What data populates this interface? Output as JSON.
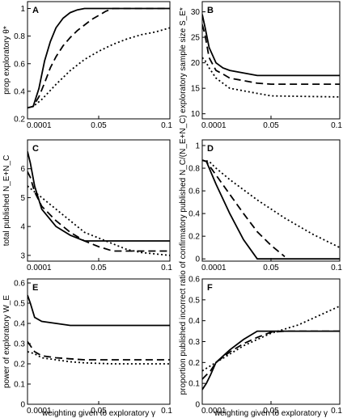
{
  "figure": {
    "xlabel": "weighting given to exploratory γ"
  },
  "chart_data": [
    {
      "type": "line",
      "panel": "A",
      "ylabel": "prop exploratory θ*",
      "xlim": [
        0,
        0.1
      ],
      "ylim": [
        0.2,
        1.05
      ],
      "xticks": [
        "0.0001",
        "0.05",
        "0.1"
      ],
      "yticks": [
        "0.2",
        "0.4",
        "0.6",
        "0.8",
        "1"
      ],
      "series": [
        {
          "style": "solid",
          "x": [
            0,
            0.004,
            0.008,
            0.012,
            0.016,
            0.02,
            0.025,
            0.03,
            0.035,
            0.04,
            0.1
          ],
          "y": [
            0.28,
            0.29,
            0.42,
            0.62,
            0.76,
            0.86,
            0.93,
            0.97,
            0.99,
            1,
            1
          ]
        },
        {
          "style": "dashed",
          "x": [
            0,
            0.004,
            0.008,
            0.012,
            0.016,
            0.02,
            0.025,
            0.03,
            0.035,
            0.04,
            0.045,
            0.05,
            0.055,
            0.06,
            0.1
          ],
          "y": [
            0.28,
            0.29,
            0.36,
            0.46,
            0.57,
            0.65,
            0.73,
            0.79,
            0.84,
            0.88,
            0.92,
            0.95,
            0.98,
            1,
            1
          ]
        },
        {
          "style": "dotted",
          "x": [
            0,
            0.004,
            0.01,
            0.02,
            0.03,
            0.04,
            0.05,
            0.06,
            0.07,
            0.08,
            0.09,
            0.1
          ],
          "y": [
            0.28,
            0.29,
            0.34,
            0.45,
            0.55,
            0.63,
            0.69,
            0.74,
            0.78,
            0.81,
            0.83,
            0.86
          ]
        }
      ]
    },
    {
      "type": "line",
      "panel": "B",
      "ylabel": "exploratory sample size S_E*",
      "xlim": [
        0,
        0.1
      ],
      "ylim": [
        9,
        32
      ],
      "xticks": [
        "0.0001",
        "0.05",
        "0.1"
      ],
      "yticks": [
        "10",
        "15",
        "20",
        "25",
        "30"
      ],
      "series": [
        {
          "style": "solid",
          "x": [
            0,
            0.002,
            0.005,
            0.01,
            0.015,
            0.02,
            0.03,
            0.04,
            0.05,
            0.1
          ],
          "y": [
            29.5,
            27,
            23,
            20,
            19,
            18.5,
            18,
            17.5,
            17.5,
            17.5
          ]
        },
        {
          "style": "dashed",
          "x": [
            0,
            0.002,
            0.005,
            0.01,
            0.015,
            0.02,
            0.03,
            0.04,
            0.05,
            0.1
          ],
          "y": [
            27.5,
            25.5,
            21,
            18.5,
            17.8,
            17,
            16.5,
            16,
            15.8,
            15.8
          ]
        },
        {
          "style": "dotted",
          "x": [
            0,
            0.002,
            0.005,
            0.01,
            0.02,
            0.03,
            0.04,
            0.05,
            0.1
          ],
          "y": [
            21,
            20.5,
            19,
            17,
            15,
            14.5,
            14,
            13.5,
            13.3
          ]
        }
      ]
    },
    {
      "type": "line",
      "panel": "C",
      "ylabel": "total published N_E+N_C",
      "xlim": [
        0,
        0.1
      ],
      "ylim": [
        2.8,
        7
      ],
      "xticks": [
        "0.0001",
        "0.05",
        "0.1"
      ],
      "yticks": [
        "3",
        "4",
        "5",
        "6"
      ],
      "series": [
        {
          "style": "solid",
          "x": [
            0,
            0.002,
            0.005,
            0.01,
            0.02,
            0.03,
            0.04,
            0.1
          ],
          "y": [
            6.6,
            6.2,
            5.4,
            4.6,
            4,
            3.7,
            3.5,
            3.5
          ]
        },
        {
          "style": "dashed",
          "x": [
            0,
            0.002,
            0.005,
            0.01,
            0.02,
            0.03,
            0.04,
            0.05,
            0.06,
            0.1
          ],
          "y": [
            5.9,
            5.7,
            5.2,
            4.7,
            4.2,
            3.8,
            3.5,
            3.3,
            3.15,
            3.15
          ]
        },
        {
          "style": "dotted",
          "x": [
            0,
            0.005,
            0.01,
            0.02,
            0.03,
            0.04,
            0.05,
            0.06,
            0.07,
            0.08,
            0.1
          ],
          "y": [
            5.4,
            5.2,
            5,
            4.6,
            4.2,
            3.8,
            3.6,
            3.4,
            3.2,
            3.1,
            3
          ]
        }
      ]
    },
    {
      "type": "line",
      "panel": "D",
      "ylabel": "ratio of confirmatory published N_C/(N_E+N_C)",
      "xlim": [
        0,
        0.1
      ],
      "ylim": [
        -0.02,
        1.05
      ],
      "xticks": [
        "0.0001",
        "0.05",
        "0.1"
      ],
      "yticks": [
        "0",
        "0.2",
        "0.4",
        "0.6",
        "0.8",
        "1"
      ],
      "series": [
        {
          "style": "solid",
          "x": [
            0,
            0.003,
            0.01,
            0.02,
            0.03,
            0.04,
            0.1
          ],
          "y": [
            0.87,
            0.86,
            0.66,
            0.4,
            0.17,
            0,
            0
          ]
        },
        {
          "style": "dashed",
          "x": [
            0,
            0.003,
            0.01,
            0.02,
            0.03,
            0.04,
            0.05,
            0.06
          ],
          "y": [
            0.87,
            0.86,
            0.74,
            0.57,
            0.4,
            0.24,
            0.12,
            0.02
          ]
        },
        {
          "style": "dotted",
          "x": [
            0,
            0.005,
            0.01,
            0.02,
            0.04,
            0.06,
            0.08,
            0.1
          ],
          "y": [
            0.87,
            0.86,
            0.8,
            0.7,
            0.52,
            0.36,
            0.22,
            0.1
          ]
        }
      ]
    },
    {
      "type": "line",
      "panel": "E",
      "ylabel": "power of exploratory W_E",
      "xlim": [
        0,
        0.1
      ],
      "ylim": [
        0,
        0.62
      ],
      "xticks": [
        "0.0001",
        "0.05",
        "0.1"
      ],
      "yticks": [
        "0",
        "0.1",
        "0.2",
        "0.3",
        "0.4",
        "0.5",
        "0.6"
      ],
      "series": [
        {
          "style": "solid",
          "x": [
            0,
            0.002,
            0.005,
            0.01,
            0.02,
            0.03,
            0.04,
            0.1
          ],
          "y": [
            0.54,
            0.5,
            0.43,
            0.41,
            0.4,
            0.39,
            0.39,
            0.39
          ]
        },
        {
          "style": "dashed",
          "x": [
            0,
            0.002,
            0.005,
            0.01,
            0.02,
            0.03,
            0.04,
            0.06,
            0.1
          ],
          "y": [
            0.31,
            0.29,
            0.26,
            0.24,
            0.23,
            0.225,
            0.22,
            0.22,
            0.22
          ]
        },
        {
          "style": "dotted",
          "x": [
            0,
            0.005,
            0.01,
            0.02,
            0.03,
            0.04,
            0.06,
            0.08,
            0.1
          ],
          "y": [
            0.26,
            0.25,
            0.23,
            0.22,
            0.21,
            0.205,
            0.2,
            0.2,
            0.2
          ]
        }
      ]
    },
    {
      "type": "line",
      "panel": "F",
      "ylabel": "proportion published incorrect",
      "xlim": [
        0,
        0.1
      ],
      "ylim": [
        0,
        0.6
      ],
      "xticks": [
        "0.0001",
        "0.05",
        "0.1"
      ],
      "yticks": [
        "0",
        "0.1",
        "0.2",
        "0.3",
        "0.4",
        "0.5",
        "0.6"
      ],
      "series": [
        {
          "style": "solid",
          "x": [
            0,
            0.003,
            0.006,
            0.01,
            0.02,
            0.03,
            0.04,
            0.1
          ],
          "y": [
            0.07,
            0.1,
            0.14,
            0.2,
            0.26,
            0.31,
            0.35,
            0.35
          ]
        },
        {
          "style": "dashed",
          "x": [
            0,
            0.003,
            0.006,
            0.01,
            0.02,
            0.03,
            0.04,
            0.05,
            0.06,
            0.1
          ],
          "y": [
            0.12,
            0.14,
            0.16,
            0.2,
            0.25,
            0.29,
            0.32,
            0.345,
            0.35,
            0.35
          ]
        },
        {
          "style": "dotted",
          "x": [
            0,
            0.005,
            0.01,
            0.02,
            0.03,
            0.04,
            0.05,
            0.06,
            0.07,
            0.08,
            0.09,
            0.1
          ],
          "y": [
            0.16,
            0.18,
            0.2,
            0.24,
            0.28,
            0.31,
            0.34,
            0.36,
            0.38,
            0.41,
            0.44,
            0.47
          ]
        }
      ]
    }
  ]
}
